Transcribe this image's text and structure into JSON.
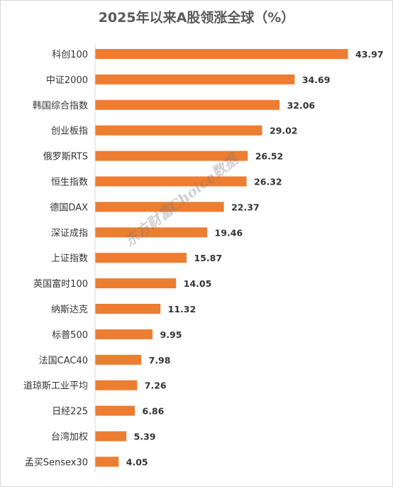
{
  "chart_data": {
    "type": "bar",
    "orientation": "horizontal",
    "title": "2025年以来A股领涨全球（%）",
    "categories": [
      "科创100",
      "中证2000",
      "韩国综合指数",
      "创业板指",
      "俄罗斯RTS",
      "恒生指数",
      "德国DAX",
      "深证成指",
      "上证指数",
      "英国富时100",
      "纳斯达克",
      "标普500",
      "法国CAC40",
      "道琼斯工业平均",
      "日经225",
      "台湾加权",
      "孟买Sensex30"
    ],
    "values": [
      43.97,
      34.69,
      32.06,
      29.02,
      26.52,
      26.32,
      22.37,
      19.46,
      15.87,
      14.05,
      11.32,
      9.95,
      7.98,
      7.26,
      6.86,
      5.39,
      4.05
    ],
    "value_labels": [
      "43.97",
      "34.69",
      "32.06",
      "29.02",
      "26.52",
      "26.32",
      "22.37",
      "19.46",
      "15.87",
      "14.05",
      "11.32",
      "9.95",
      "7.98",
      "7.26",
      "6.86",
      "5.39",
      "4.05"
    ],
    "xlim": [
      0,
      45
    ],
    "grid": false,
    "legend": "none",
    "bar_color": "#ED7D31"
  },
  "watermark": "东方财富Choice数据"
}
